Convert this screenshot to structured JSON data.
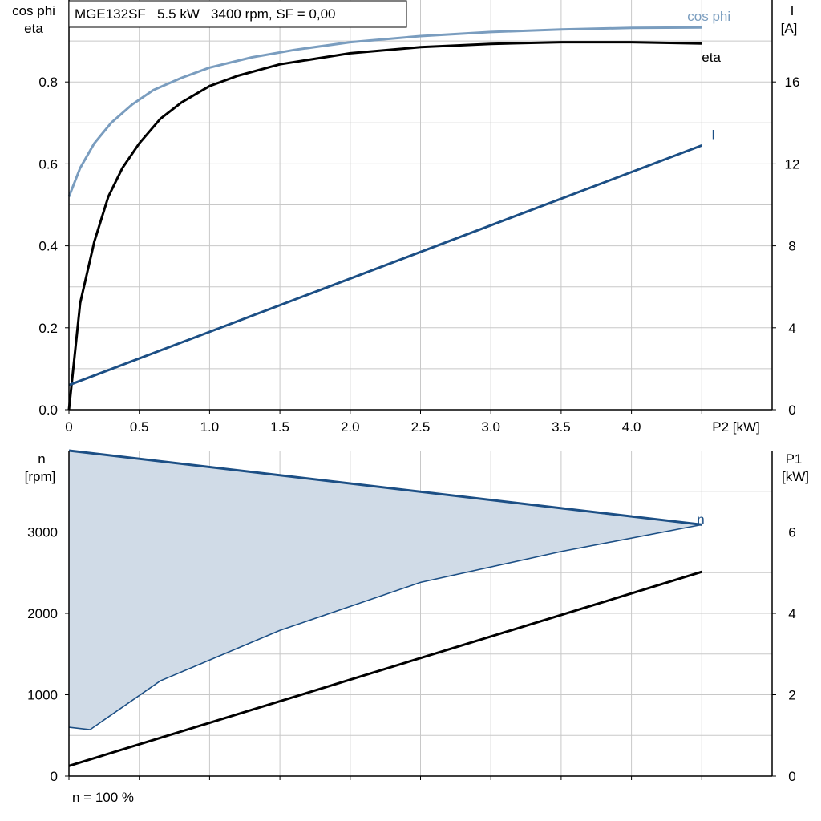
{
  "chart_data": [
    {
      "type": "line",
      "title": "MGE132SF   5.5 kW   3400 rpm, SF = 0,00",
      "xlabel": "P2 [kW]",
      "ylabel_left": [
        "cos phi",
        "eta"
      ],
      "ylabel_right": [
        "I",
        "[A]"
      ],
      "xlim": [
        0,
        5.0
      ],
      "ylim_left": [
        0,
        1.0
      ],
      "ylim_right": [
        0,
        20
      ],
      "xticks": [
        "0",
        "0.5",
        "1.0",
        "1.5",
        "2.0",
        "2.5",
        "3.0",
        "3.5",
        "4.0"
      ],
      "yticks_left": [
        "0.0",
        "0.2",
        "0.4",
        "0.6",
        "0.8"
      ],
      "yticks_right": [
        "0",
        "4",
        "8",
        "12",
        "16"
      ],
      "grid": true,
      "series": [
        {
          "name": "cos phi",
          "axis": "left",
          "color": "#7a9dbf",
          "x": [
            0,
            0.08,
            0.18,
            0.3,
            0.45,
            0.6,
            0.8,
            1.0,
            1.3,
            1.6,
            2.0,
            2.5,
            3.0,
            3.5,
            4.0,
            4.5
          ],
          "y": [
            0.52,
            0.59,
            0.65,
            0.7,
            0.745,
            0.78,
            0.81,
            0.835,
            0.86,
            0.878,
            0.897,
            0.912,
            0.922,
            0.928,
            0.932,
            0.933
          ]
        },
        {
          "name": "eta",
          "axis": "left",
          "color": "#000000",
          "x": [
            0,
            0.08,
            0.18,
            0.28,
            0.38,
            0.5,
            0.65,
            0.8,
            1.0,
            1.2,
            1.5,
            2.0,
            2.5,
            3.0,
            3.5,
            4.0,
            4.5
          ],
          "y": [
            0.0,
            0.26,
            0.41,
            0.52,
            0.59,
            0.65,
            0.71,
            0.75,
            0.79,
            0.815,
            0.843,
            0.87,
            0.885,
            0.893,
            0.897,
            0.897,
            0.894
          ]
        },
        {
          "name": "I",
          "axis": "right",
          "color": "#1c4f85",
          "x": [
            0,
            4.5
          ],
          "y": [
            1.2,
            12.9
          ]
        }
      ]
    },
    {
      "type": "area",
      "xlabel": "",
      "ylabel_left": [
        "n",
        "[rpm]"
      ],
      "ylabel_right": [
        "P1",
        "[kW]"
      ],
      "xlim": [
        0,
        5.0
      ],
      "ylim_left": [
        0,
        4000
      ],
      "ylim_right": [
        0,
        8
      ],
      "yticks_left": [
        "0",
        "1000",
        "2000",
        "3000"
      ],
      "yticks_right": [
        "0",
        "2",
        "4",
        "6"
      ],
      "grid": true,
      "footnote": "n = 100 %",
      "series": [
        {
          "name": "n",
          "axis": "left",
          "color": "#1c4f85",
          "x": [
            0,
            4.5
          ],
          "y": [
            4000,
            3090
          ]
        },
        {
          "name": "",
          "role": "lower-bound",
          "axis": "left",
          "color": "#1c4f85",
          "x": [
            0,
            0.15,
            0.65,
            1.5,
            2.5,
            3.5,
            4.5
          ],
          "y": [
            600,
            570,
            1170,
            1790,
            2380,
            2760,
            3090
          ]
        },
        {
          "name": "",
          "axis": "right",
          "color": "#000000",
          "x": [
            0,
            4.5
          ],
          "y": [
            0.25,
            5.02
          ]
        }
      ]
    }
  ]
}
